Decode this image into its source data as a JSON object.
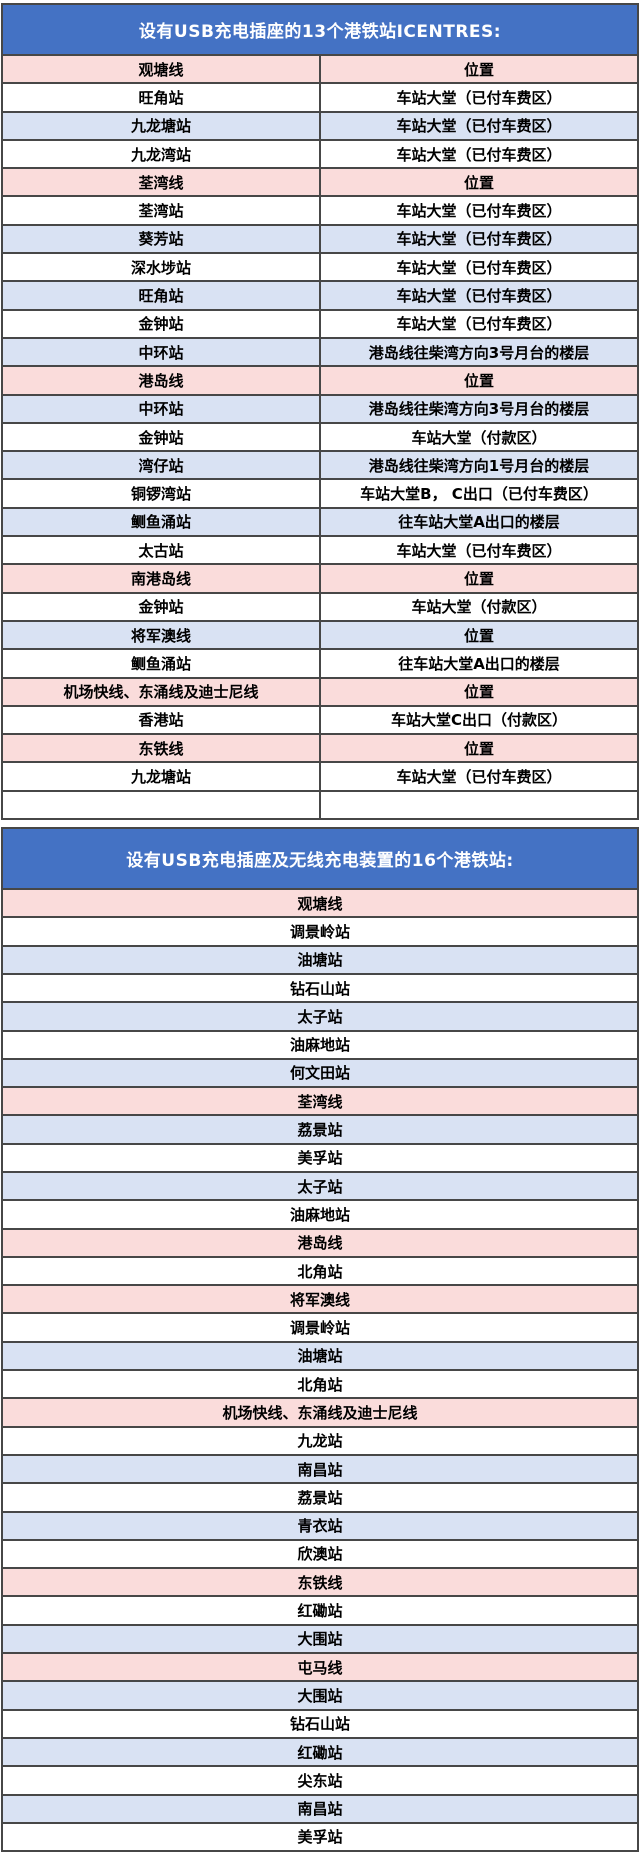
{
  "colors": {
    "header_bg": "#4472C4",
    "header_text": "#ffffff",
    "row_pink": "#FADCDB",
    "row_blue": "#D9E2F3",
    "row_white": "#ffffff",
    "border": "#474747",
    "body_text": "#000000"
  },
  "table1": {
    "title": "设有USB充电插座的13个港铁站ICENTRES:",
    "rows": [
      {
        "c1": "观塘线",
        "c2": "位置",
        "style": "pink"
      },
      {
        "c1": "旺角站",
        "c2": "车站大堂（已付车费区）",
        "style": "white"
      },
      {
        "c1": "九龙塘站",
        "c2": "车站大堂（已付车费区）",
        "style": "blue"
      },
      {
        "c1": "九龙湾站",
        "c2": "车站大堂（已付车费区）",
        "style": "white"
      },
      {
        "c1": "荃湾线",
        "c2": "位置",
        "style": "pink"
      },
      {
        "c1": "荃湾站",
        "c2": "车站大堂（已付车费区）",
        "style": "white"
      },
      {
        "c1": "葵芳站",
        "c2": "车站大堂（已付车费区）",
        "style": "blue"
      },
      {
        "c1": "深水埗站",
        "c2": "车站大堂（已付车费区）",
        "style": "white"
      },
      {
        "c1": "旺角站",
        "c2": "车站大堂（已付车费区）",
        "style": "blue"
      },
      {
        "c1": "金钟站",
        "c2": "车站大堂（已付车费区）",
        "style": "white"
      },
      {
        "c1": "中环站",
        "c2": "港岛线往柴湾方向3号月台的楼层",
        "style": "blue"
      },
      {
        "c1": "港岛线",
        "c2": "位置",
        "style": "pink"
      },
      {
        "c1": "中环站",
        "c2": "港岛线往柴湾方向3号月台的楼层",
        "style": "blue"
      },
      {
        "c1": "金钟站",
        "c2": "车站大堂（付款区）",
        "style": "white"
      },
      {
        "c1": "湾仔站",
        "c2": "港岛线往柴湾方向1号月台的楼层",
        "style": "blue"
      },
      {
        "c1": "铜锣湾站",
        "c2": "车站大堂B， C出口（已付车费区）",
        "style": "white"
      },
      {
        "c1": "鲗鱼涌站",
        "c2": "往车站大堂A出口的楼层",
        "style": "blue"
      },
      {
        "c1": "太古站",
        "c2": "车站大堂（已付车费区）",
        "style": "white"
      },
      {
        "c1": "南港岛线",
        "c2": "位置",
        "style": "pink"
      },
      {
        "c1": "金钟站",
        "c2": "车站大堂（付款区）",
        "style": "white"
      },
      {
        "c1": "将军澳线",
        "c2": "位置",
        "style": "blue"
      },
      {
        "c1": "鲗鱼涌站",
        "c2": "往车站大堂A出口的楼层",
        "style": "white"
      },
      {
        "c1": "机场快线、东涌线及迪士尼线",
        "c2": "位置",
        "style": "pink"
      },
      {
        "c1": "香港站",
        "c2": "车站大堂C出口（付款区）",
        "style": "white"
      },
      {
        "c1": "东铁线",
        "c2": "位置",
        "style": "pink"
      },
      {
        "c1": "九龙塘站",
        "c2": "车站大堂（已付车费区）",
        "style": "white"
      },
      {
        "c1": "",
        "c2": "",
        "style": "white"
      }
    ]
  },
  "table2": {
    "title": "设有USB充电插座及无线充电装置的16个港铁站:",
    "rows": [
      {
        "label": "观塘线",
        "style": "pink"
      },
      {
        "label": "调景岭站",
        "style": "white"
      },
      {
        "label": "油塘站",
        "style": "blue"
      },
      {
        "label": "钻石山站",
        "style": "white"
      },
      {
        "label": "太子站",
        "style": "blue"
      },
      {
        "label": "油麻地站",
        "style": "white"
      },
      {
        "label": "何文田站",
        "style": "blue"
      },
      {
        "label": "荃湾线",
        "style": "pink"
      },
      {
        "label": "荔景站",
        "style": "blue"
      },
      {
        "label": "美孚站",
        "style": "white"
      },
      {
        "label": "太子站",
        "style": "blue"
      },
      {
        "label": "油麻地站",
        "style": "white"
      },
      {
        "label": "港岛线",
        "style": "pink"
      },
      {
        "label": "北角站",
        "style": "white"
      },
      {
        "label": "将军澳线",
        "style": "pink"
      },
      {
        "label": "调景岭站",
        "style": "white"
      },
      {
        "label": "油塘站",
        "style": "blue"
      },
      {
        "label": "北角站",
        "style": "white"
      },
      {
        "label": "机场快线、东涌线及迪士尼线",
        "style": "pink"
      },
      {
        "label": "九龙站",
        "style": "white"
      },
      {
        "label": "南昌站",
        "style": "blue"
      },
      {
        "label": "荔景站",
        "style": "white"
      },
      {
        "label": "青衣站",
        "style": "blue"
      },
      {
        "label": "欣澳站",
        "style": "white"
      },
      {
        "label": "东铁线",
        "style": "pink"
      },
      {
        "label": "红磡站",
        "style": "white"
      },
      {
        "label": "大围站",
        "style": "blue"
      },
      {
        "label": "屯马线",
        "style": "pink"
      },
      {
        "label": "大围站",
        "style": "blue"
      },
      {
        "label": "钻石山站",
        "style": "white"
      },
      {
        "label": "红磡站",
        "style": "blue"
      },
      {
        "label": "尖东站",
        "style": "white"
      },
      {
        "label": "南昌站",
        "style": "blue"
      },
      {
        "label": "美孚站",
        "style": "white"
      }
    ]
  }
}
